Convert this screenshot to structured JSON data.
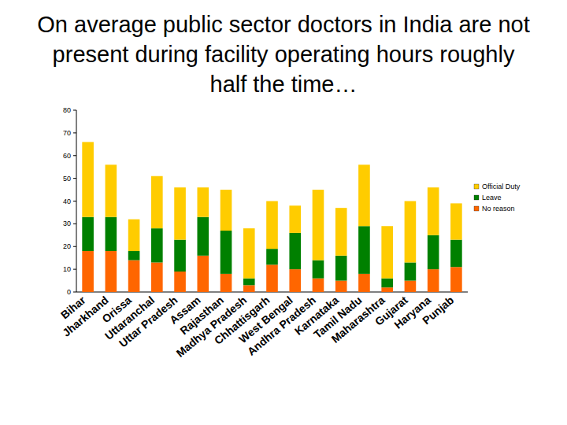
{
  "chart_data": {
    "type": "bar",
    "stacked": true,
    "title": "On average public sector doctors in India are not present during facility operating hours roughly half the time…",
    "categories": [
      "Bihar",
      "Jharkhand",
      "Orissa",
      "Uttaranchal",
      "Uttar Pradesh",
      "Assam",
      "Rajasthan",
      "Madhya Pradesh",
      "Chhattisgarh",
      "West Bengal",
      "Andhra Pradesh",
      "Karnataka",
      "Tamil Nadu",
      "Maharashtra",
      "Gujarat",
      "Haryana",
      "Punjab"
    ],
    "series": [
      {
        "name": "No reason",
        "color": "#ff6600",
        "values": [
          18,
          18,
          14,
          13,
          9,
          16,
          8,
          3,
          12,
          10,
          6,
          5,
          8,
          2,
          5,
          10,
          11
        ]
      },
      {
        "name": "Leave",
        "color": "#008000",
        "values": [
          15,
          15,
          4,
          15,
          14,
          17,
          19,
          3,
          7,
          16,
          8,
          11,
          21,
          4,
          8,
          15,
          12
        ]
      },
      {
        "name": "Official Duty",
        "color": "#ffcc00",
        "values": [
          33,
          23,
          14,
          23,
          23,
          13,
          18,
          22,
          21,
          12,
          31,
          21,
          27,
          23,
          27,
          21,
          16
        ]
      }
    ],
    "ylim": [
      0,
      80
    ],
    "yticks": [
      0,
      10,
      20,
      30,
      40,
      50,
      60,
      70,
      80
    ],
    "grid": false,
    "legend": "right"
  }
}
